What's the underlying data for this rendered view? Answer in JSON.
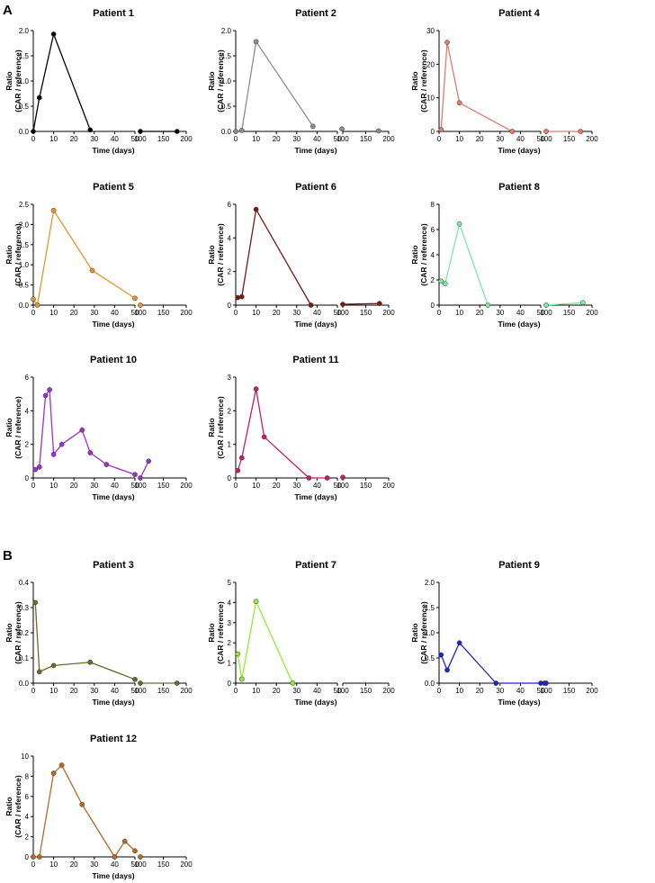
{
  "figure": {
    "panels": [
      {
        "letter": "A"
      },
      {
        "letter": "B"
      }
    ]
  },
  "chart_data": [
    {
      "type": "line",
      "panel": "A",
      "title": "Patient 1",
      "color": "#000000",
      "xlabel": "Time (days)",
      "ylabel": [
        "Ratio",
        "(CAR / reference)"
      ],
      "ylim": [
        0,
        2.0
      ],
      "yticks": [
        "0.0",
        "0.5",
        "1.0",
        "1.5",
        "2.0"
      ],
      "x_left_ticks": [
        "0",
        "10",
        "20",
        "30",
        "40",
        "50"
      ],
      "x_right_ticks": [
        "100",
        "150",
        "200"
      ],
      "points": [
        {
          "x": 0,
          "y": 0
        },
        {
          "x": 3,
          "y": 0.67
        },
        {
          "x": 10,
          "y": 1.93
        },
        {
          "x": 28,
          "y": 0.03
        },
        {
          "x": 100,
          "y": 0.0
        },
        {
          "x": 180,
          "y": 0.0
        }
      ]
    },
    {
      "type": "line",
      "panel": "A",
      "title": "Patient 2",
      "color": "#8c8c8c",
      "xlabel": "Time (days)",
      "ylabel": [
        "Ratio",
        "(CAR / reference)"
      ],
      "ylim": [
        0,
        2.0
      ],
      "yticks": [
        "0.0",
        "0.5",
        "1.0",
        "1.5",
        "2.0"
      ],
      "x_left_ticks": [
        "0",
        "10",
        "20",
        "30",
        "40",
        "50"
      ],
      "x_right_ticks": [
        "100",
        "150",
        "200"
      ],
      "points": [
        {
          "x": 0,
          "y": 0
        },
        {
          "x": 3,
          "y": 0.02
        },
        {
          "x": 10,
          "y": 1.78
        },
        {
          "x": 38,
          "y": 0.1
        },
        {
          "x": 98,
          "y": 0.05
        },
        {
          "x": 178,
          "y": 0.01
        }
      ]
    },
    {
      "type": "line",
      "panel": "A",
      "title": "Patient 4",
      "color": "#e07c72",
      "xlabel": "Time (days)",
      "ylabel": [
        "Ratio",
        "(CAR / reference)"
      ],
      "ylim": [
        0,
        30
      ],
      "yticks": [
        "0",
        "10",
        "20",
        "30"
      ],
      "x_left_ticks": [
        "0",
        "10",
        "20",
        "30",
        "40",
        "50"
      ],
      "x_right_ticks": [
        "100",
        "150",
        "200"
      ],
      "points": [
        {
          "x": 1,
          "y": 0.5
        },
        {
          "x": 4,
          "y": 26.5
        },
        {
          "x": 10,
          "y": 8.5
        },
        {
          "x": 36,
          "y": 0
        },
        {
          "x": 100,
          "y": 0
        },
        {
          "x": 175,
          "y": 0
        }
      ]
    },
    {
      "type": "line",
      "panel": "A",
      "title": "Patient 5",
      "color": "#e6962e",
      "xlabel": "Time (days)",
      "ylabel": [
        "Ratio",
        "(CAR / reference)"
      ],
      "ylim": [
        0,
        2.5
      ],
      "yticks": [
        "0.0",
        "0.5",
        "1.0",
        "1.5",
        "2.0",
        "2.5"
      ],
      "x_left_ticks": [
        "0",
        "10",
        "20",
        "30",
        "40",
        "50"
      ],
      "x_right_ticks": [
        "100",
        "150",
        "200"
      ],
      "points": [
        {
          "x": 0,
          "y": 0.15
        },
        {
          "x": 2,
          "y": 0
        },
        {
          "x": 10,
          "y": 2.35
        },
        {
          "x": 29,
          "y": 0.86
        },
        {
          "x": 50,
          "y": 0.17
        },
        {
          "x": 100,
          "y": 0
        }
      ]
    },
    {
      "type": "line",
      "panel": "A",
      "title": "Patient 6",
      "color": "#7a1a14",
      "xlabel": "Time (days)",
      "ylabel": [
        "Ratio",
        "(CAR / reference)"
      ],
      "ylim": [
        0,
        6
      ],
      "yticks": [
        "0",
        "2",
        "4",
        "6"
      ],
      "x_left_ticks": [
        "0",
        "10",
        "20",
        "30",
        "40",
        "50"
      ],
      "x_right_ticks": [
        "100",
        "150",
        "200"
      ],
      "points": [
        {
          "x": 1,
          "y": 0.45
        },
        {
          "x": 3,
          "y": 0.5
        },
        {
          "x": 10,
          "y": 5.7
        },
        {
          "x": 37,
          "y": 0
        },
        {
          "x": 100,
          "y": 0.05
        },
        {
          "x": 180,
          "y": 0.1
        }
      ]
    },
    {
      "type": "line",
      "panel": "A",
      "title": "Patient 8",
      "color": "#7de8a0",
      "xlabel": "Time (days)",
      "ylabel": [
        "Ratio",
        "(CAR / reference)"
      ],
      "ylim": [
        0,
        8
      ],
      "yticks": [
        "0",
        "2",
        "4",
        "6",
        "8"
      ],
      "x_left_ticks": [
        "0",
        "10",
        "20",
        "30",
        "40",
        "50"
      ],
      "x_right_ticks": [
        "100",
        "150",
        "200"
      ],
      "points": [
        {
          "x": 1,
          "y": 1.9
        },
        {
          "x": 3,
          "y": 1.7
        },
        {
          "x": 10,
          "y": 6.45
        },
        {
          "x": 24,
          "y": 0
        },
        {
          "x": 100,
          "y": 0
        },
        {
          "x": 180,
          "y": 0.2
        }
      ]
    },
    {
      "type": "line",
      "panel": "A",
      "title": "Patient 10",
      "color": "#9933cc",
      "xlabel": "Time (days)",
      "ylabel": [
        "Ratio",
        "(CAR / reference)"
      ],
      "ylim": [
        0,
        6
      ],
      "yticks": [
        "0",
        "2",
        "4",
        "6"
      ],
      "x_left_ticks": [
        "0",
        "10",
        "20",
        "30",
        "40",
        "50"
      ],
      "x_right_ticks": [
        "100",
        "150",
        "200"
      ],
      "points": [
        {
          "x": 1,
          "y": 0.5
        },
        {
          "x": 3,
          "y": 0.65
        },
        {
          "x": 6,
          "y": 4.9
        },
        {
          "x": 8,
          "y": 5.25
        },
        {
          "x": 10,
          "y": 1.4
        },
        {
          "x": 14,
          "y": 2.0
        },
        {
          "x": 24,
          "y": 2.85
        },
        {
          "x": 28,
          "y": 1.5
        },
        {
          "x": 36,
          "y": 0.8
        },
        {
          "x": 50,
          "y": 0.2
        },
        {
          "x": 100,
          "y": 0
        },
        {
          "x": 118,
          "y": 1.0
        }
      ]
    },
    {
      "type": "line",
      "panel": "A",
      "title": "Patient 11",
      "color": "#c41e68",
      "xlabel": "Time (days)",
      "ylabel": [
        "Ratio",
        "(CAR / reference)"
      ],
      "ylim": [
        0,
        3
      ],
      "yticks": [
        "0",
        "1",
        "2",
        "3"
      ],
      "x_left_ticks": [
        "0",
        "10",
        "20",
        "30",
        "40",
        "50"
      ],
      "x_right_ticks": [
        "100",
        "150",
        "200"
      ],
      "points": [
        {
          "x": 1,
          "y": 0.22
        },
        {
          "x": 3,
          "y": 0.6
        },
        {
          "x": 10,
          "y": 2.65
        },
        {
          "x": 14,
          "y": 1.22
        },
        {
          "x": 36,
          "y": 0
        },
        {
          "x": 45,
          "y": 0
        },
        {
          "x": 100,
          "y": 0.02
        }
      ]
    },
    {
      "type": "line",
      "panel": "B",
      "title": "Patient 3",
      "color": "#6b6b2e",
      "xlabel": "Time (days)",
      "ylabel": [
        "Ratio",
        "(CAR / reference)"
      ],
      "ylim": [
        0,
        0.4
      ],
      "yticks": [
        "0.0",
        "0.1",
        "0.2",
        "0.3",
        "0.4"
      ],
      "x_left_ticks": [
        "0",
        "10",
        "20",
        "30",
        "40",
        "50"
      ],
      "x_right_ticks": [
        "100",
        "150",
        "200"
      ],
      "points": [
        {
          "x": 1,
          "y": 0.32
        },
        {
          "x": 3,
          "y": 0.045
        },
        {
          "x": 10,
          "y": 0.07
        },
        {
          "x": 28,
          "y": 0.083
        },
        {
          "x": 50,
          "y": 0.015
        },
        {
          "x": 100,
          "y": 0
        },
        {
          "x": 180,
          "y": 0
        }
      ]
    },
    {
      "type": "line",
      "panel": "B",
      "title": "Patient 7",
      "color": "#8ef02c",
      "xlabel": "Time (days)",
      "ylabel": [
        "Ratio",
        "(CAR / reference)"
      ],
      "ylim": [
        0,
        5
      ],
      "yticks": [
        "0",
        "1",
        "2",
        "3",
        "4",
        "5"
      ],
      "x_left_ticks": [
        "0",
        "10",
        "20",
        "30",
        "40",
        "50"
      ],
      "x_right_ticks": [
        "100",
        "150",
        "200"
      ],
      "points": [
        {
          "x": 1,
          "y": 1.45
        },
        {
          "x": 3,
          "y": 0.2
        },
        {
          "x": 10,
          "y": 4.05
        },
        {
          "x": 28,
          "y": 0
        }
      ]
    },
    {
      "type": "line",
      "panel": "B",
      "title": "Patient 9",
      "color": "#2222cc",
      "xlabel": "Time (days)",
      "ylabel": [
        "Ratio",
        "(CAR / reference)"
      ],
      "ylim": [
        0,
        2.0
      ],
      "yticks": [
        "0.0",
        "0.5",
        "1.0",
        "1.5",
        "2.0"
      ],
      "x_left_ticks": [
        "0",
        "10",
        "20",
        "30",
        "40",
        "50"
      ],
      "x_right_ticks": [
        "100",
        "150",
        "200"
      ],
      "points": [
        {
          "x": 1,
          "y": 0.56
        },
        {
          "x": 4,
          "y": 0.26
        },
        {
          "x": 10,
          "y": 0.8
        },
        {
          "x": 28,
          "y": 0
        },
        {
          "x": 50,
          "y": 0
        },
        {
          "x": 96,
          "y": 0
        },
        {
          "x": 100,
          "y": 0
        }
      ]
    },
    {
      "type": "line",
      "panel": "B",
      "title": "Patient 12",
      "color": "#b86a28",
      "xlabel": "Time (days)",
      "ylabel": [
        "Ratio",
        "(CAR / reference)"
      ],
      "ylim": [
        0,
        10
      ],
      "yticks": [
        "0",
        "2",
        "4",
        "6",
        "8",
        "10"
      ],
      "x_left_ticks": [
        "0",
        "10",
        "20",
        "30",
        "40",
        "50"
      ],
      "x_right_ticks": [
        "100",
        "150",
        "200"
      ],
      "points": [
        {
          "x": 0,
          "y": 0
        },
        {
          "x": 3,
          "y": 0
        },
        {
          "x": 10,
          "y": 8.3
        },
        {
          "x": 14,
          "y": 9.1
        },
        {
          "x": 24,
          "y": 5.2
        },
        {
          "x": 40,
          "y": 0
        },
        {
          "x": 45,
          "y": 1.55
        },
        {
          "x": 50,
          "y": 0.6
        },
        {
          "x": 100,
          "y": 0
        }
      ]
    }
  ]
}
